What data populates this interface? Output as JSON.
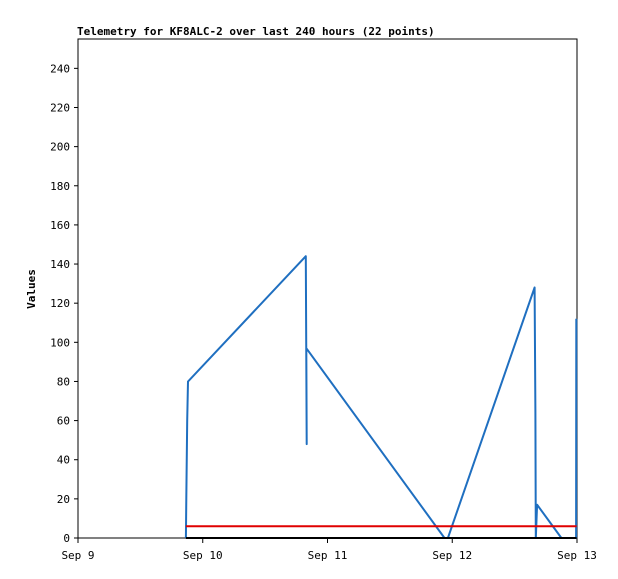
{
  "chart_data": {
    "type": "line",
    "title": "Telemetry for KF8ALC-2 over last 240 hours (22 points)",
    "xlabel": "",
    "ylabel": "Values",
    "x_ticks": [
      "Sep 9",
      "Sep 10",
      "Sep 11",
      "Sep 12",
      "Sep 13"
    ],
    "xlim": [
      "Sep 9",
      "Sep 13"
    ],
    "y_ticks": [
      0,
      20,
      40,
      60,
      80,
      100,
      120,
      140,
      160,
      180,
      200,
      220,
      240
    ],
    "ylim": [
      0,
      255
    ],
    "grid": false,
    "colors": {
      "series_main": "#1f6fc0",
      "series_red": "#e00000",
      "series_black": "#000000"
    },
    "series": [
      {
        "name": "",
        "color": "#1f6fc0",
        "points": [
          [
            "Sep 9 20:45",
            0
          ],
          [
            "Sep 9 20:50",
            20
          ],
          [
            "Sep 9 21:00",
            60
          ],
          [
            "Sep 9 21:10",
            80
          ],
          [
            "Sep 10 19:50",
            144
          ],
          [
            "Sep 10 20:00",
            48
          ],
          [
            "Sep 10 19:55",
            97
          ],
          [
            "Sep 11 22:30",
            0
          ],
          [
            "Sep 11 23:10",
            0
          ],
          [
            "Sep 12 15:50",
            128
          ],
          [
            "Sep 12 16:00",
            64
          ],
          [
            "Sep 12 16:05",
            0
          ],
          [
            "Sep 12 16:20",
            17
          ],
          [
            "Sep 12 21:00",
            0
          ],
          [
            "Sep 12 23:50",
            0
          ],
          [
            "Sep 12 23:52",
            112
          ]
        ]
      },
      {
        "name": "",
        "color": "#e00000",
        "points": [
          [
            "Sep 9 20:45",
            6
          ],
          [
            "Sep 12 23:55",
            6
          ]
        ]
      },
      {
        "name": "",
        "color": "#000000",
        "points": [
          [
            "Sep 9 20:45",
            0
          ],
          [
            "Sep 12 23:55",
            0
          ]
        ]
      }
    ]
  }
}
